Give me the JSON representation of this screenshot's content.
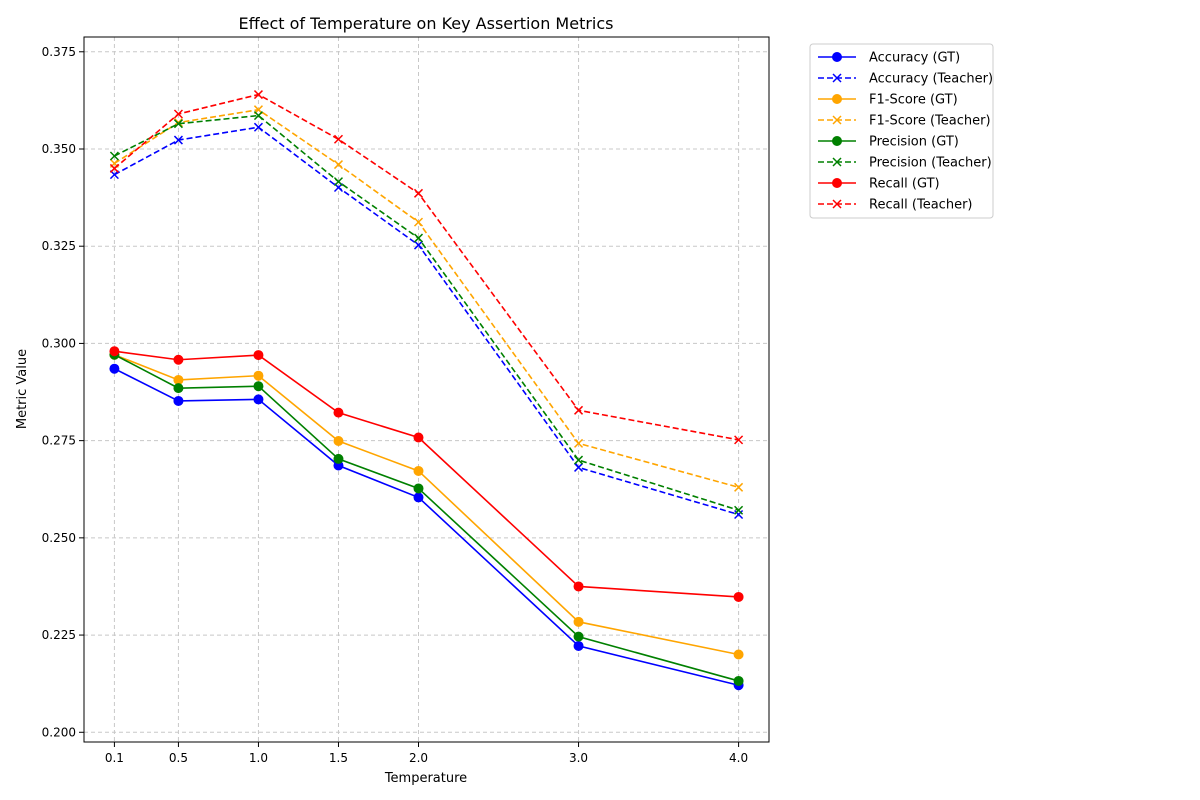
{
  "chart_data": {
    "type": "line",
    "title": "Effect of Temperature on Key Assertion Metrics",
    "xlabel": "Temperature",
    "ylabel": "Metric Value",
    "x": [
      0.1,
      0.5,
      1.0,
      1.5,
      2.0,
      3.0,
      4.0
    ],
    "x_tick_labels": [
      "0.1",
      "0.5",
      "1.0",
      "1.5",
      "2.0",
      "3.0",
      "4.0"
    ],
    "xlim": [
      -0.09,
      4.19
    ],
    "ylim": [
      0.1975,
      0.3788
    ],
    "y_ticks": [
      0.2,
      0.225,
      0.25,
      0.275,
      0.3,
      0.325,
      0.35,
      0.375
    ],
    "y_tick_labels": [
      "0.200",
      "0.225",
      "0.250",
      "0.275",
      "0.300",
      "0.325",
      "0.350",
      "0.375"
    ],
    "grid": true,
    "legend_position": "outside-top-right",
    "series": [
      {
        "name": "Accuracy (GT)",
        "color": "#0000ff",
        "dash": "solid",
        "marker": "circle",
        "values": [
          0.2935,
          0.2852,
          0.2856,
          0.2686,
          0.2604,
          0.2222,
          0.2121
        ]
      },
      {
        "name": "Accuracy (Teacher)",
        "color": "#0000ff",
        "dash": "dashed",
        "marker": "x",
        "values": [
          0.3434,
          0.3523,
          0.3556,
          0.3401,
          0.3253,
          0.2681,
          0.256
        ]
      },
      {
        "name": "F1-Score (GT)",
        "color": "#ffa500",
        "dash": "solid",
        "marker": "circle",
        "values": [
          0.2971,
          0.2906,
          0.2917,
          0.2749,
          0.2672,
          0.2284,
          0.22
        ]
      },
      {
        "name": "F1-Score (Teacher)",
        "color": "#ffa500",
        "dash": "dashed",
        "marker": "x",
        "values": [
          0.3463,
          0.3568,
          0.3601,
          0.346,
          0.3312,
          0.2743,
          0.263
        ]
      },
      {
        "name": "Precision (GT)",
        "color": "#008000",
        "dash": "solid",
        "marker": "circle",
        "values": [
          0.2971,
          0.2885,
          0.289,
          0.2703,
          0.2627,
          0.2246,
          0.2132
        ]
      },
      {
        "name": "Precision (Teacher)",
        "color": "#008000",
        "dash": "dashed",
        "marker": "x",
        "values": [
          0.3482,
          0.3565,
          0.3586,
          0.3416,
          0.3271,
          0.27,
          0.2571
        ]
      },
      {
        "name": "Recall (GT)",
        "color": "#ff0000",
        "dash": "solid",
        "marker": "circle",
        "values": [
          0.298,
          0.2958,
          0.297,
          0.2822,
          0.2758,
          0.2375,
          0.2348
        ]
      },
      {
        "name": "Recall (Teacher)",
        "color": "#ff0000",
        "dash": "dashed",
        "marker": "x",
        "values": [
          0.345,
          0.359,
          0.364,
          0.3525,
          0.3386,
          0.2828,
          0.2752
        ]
      }
    ]
  }
}
